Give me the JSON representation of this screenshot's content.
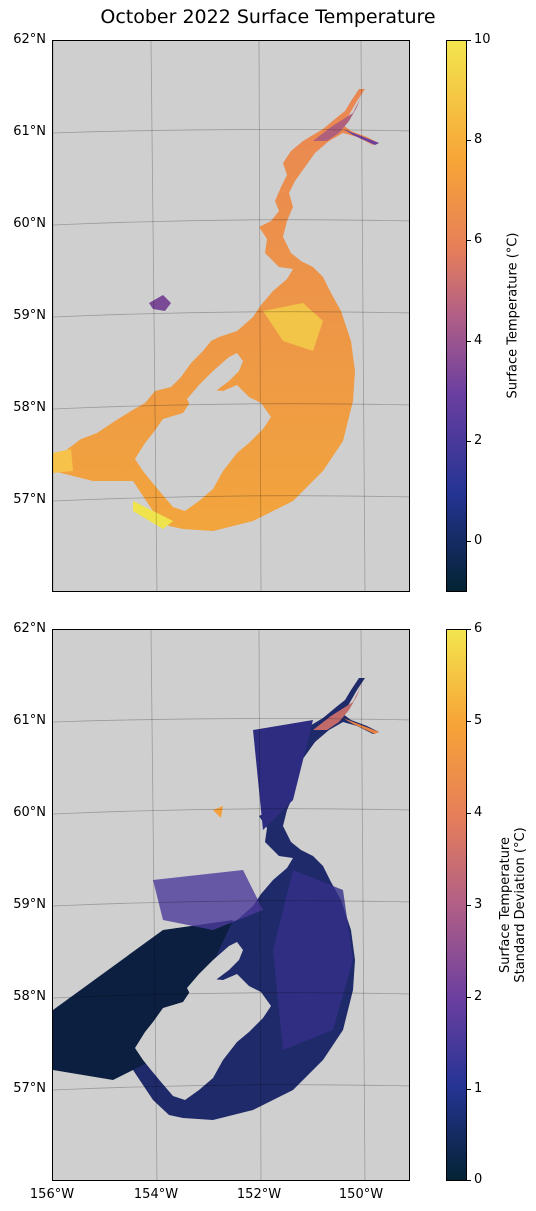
{
  "title": "October 2022 Surface Temperature",
  "colors": {
    "land": "#cfcfcf",
    "water_outline": "#ffffff",
    "colormap": [
      "#042333",
      "#253494",
      "#6b3fa0",
      "#b15f86",
      "#e67e5a",
      "#f7a437",
      "#f3e54e"
    ]
  },
  "latitude_labels": [
    "62°N",
    "61°N",
    "60°N",
    "59°N",
    "58°N",
    "57°N"
  ],
  "longitude_labels": [
    "156°W",
    "154°W",
    "152°W",
    "150°W"
  ],
  "panels": [
    {
      "name": "Surface Temperature",
      "colorbar": {
        "label": "Surface Temperature (°C)",
        "ticks": [
          "10",
          "8",
          "6",
          "4",
          "2",
          "0"
        ],
        "range": [
          -1,
          10
        ]
      }
    },
    {
      "name": "Standard Deviation",
      "colorbar": {
        "label_line1": "Surface Temperature",
        "label_line2": "Standard Deviation (°C)",
        "ticks": [
          "6",
          "5",
          "4",
          "3",
          "2",
          "1",
          "0"
        ],
        "range": [
          0,
          6
        ]
      }
    }
  ],
  "chart_data": [
    {
      "type": "heatmap",
      "title": "October 2022 Surface Temperature",
      "variable": "Surface Temperature (°C)",
      "lat_range": [
        56,
        62
      ],
      "lon_range": [
        -156,
        -149
      ],
      "color_range": [
        -1,
        10
      ],
      "colorbar_ticks": [
        0,
        2,
        4,
        6,
        8,
        10
      ],
      "typical_values": {
        "cook_inlet_upper": 6.5,
        "cook_inlet_lower": 8.5,
        "shelikof_strait": 8.5,
        "gulf_shelf": 7.5,
        "southwest_edge": 9.5
      },
      "grid": true
    },
    {
      "type": "heatmap",
      "variable": "Surface Temperature Standard Deviation (°C)",
      "lat_range": [
        56,
        62
      ],
      "lon_range": [
        -156,
        -149
      ],
      "color_range": [
        0,
        6
      ],
      "colorbar_ticks": [
        0,
        1,
        2,
        3,
        4,
        5,
        6
      ],
      "typical_values": {
        "cook_inlet_upper": 2.5,
        "cook_inlet_lower": 1.5,
        "shelikof_strait": 0.5,
        "gulf_shelf": 1.0
      },
      "grid": true
    }
  ]
}
